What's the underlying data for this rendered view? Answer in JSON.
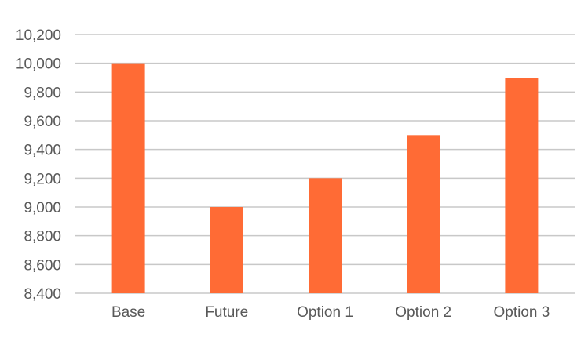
{
  "chart_data": {
    "type": "bar",
    "categories": [
      "Base",
      "Future",
      "Option 1",
      "Option 2",
      "Option 3"
    ],
    "values": [
      10000,
      9000,
      9200,
      9500,
      9900
    ],
    "ylim": [
      8400,
      10200
    ],
    "yticks": [
      8400,
      8600,
      8800,
      9000,
      9200,
      9400,
      9600,
      9800,
      10000,
      10200
    ],
    "ytick_labels": [
      "8,400",
      "8,600",
      "8,800",
      "9,000",
      "9,200",
      "9,400",
      "9,600",
      "9,800",
      "10,000",
      "10,200"
    ],
    "grid": true,
    "legend": "none",
    "bar_color": "#ff6b35",
    "grid_color": "#c8c8c8",
    "label_color": "#595959"
  }
}
